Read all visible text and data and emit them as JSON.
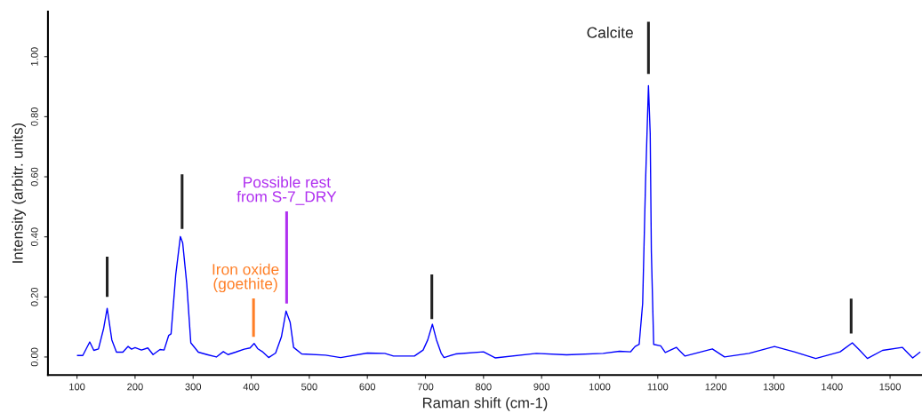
{
  "chart_data": {
    "type": "line",
    "xlabel": "Raman shift (cm-1)",
    "ylabel": "Intensity (arbitr. units)",
    "xlim": [
      50,
      1555
    ],
    "ylim": [
      -0.06,
      1.15
    ],
    "xticks": [
      100,
      200,
      300,
      400,
      500,
      600,
      700,
      800,
      900,
      1000,
      1100,
      1200,
      1300,
      1400,
      1500
    ],
    "yticks": [
      {
        "value": 0,
        "label": "0.00"
      },
      {
        "value": 0.2,
        "label": "0.20"
      },
      {
        "value": 0.4,
        "label": "0.40"
      },
      {
        "value": 0.6,
        "label": "0.60"
      },
      {
        "value": 0.8,
        "label": "0.80"
      },
      {
        "value": 1.0,
        "label": "1.00"
      }
    ],
    "grid": false,
    "marker": "none",
    "line_style": "solid",
    "series": [
      {
        "color": "#0000ff",
        "x": [
          100,
          110,
          122,
          129,
          137,
          146,
          152,
          160,
          168,
          179,
          188,
          194,
          200,
          211,
          222,
          231,
          243,
          250,
          258,
          262,
          270,
          278,
          282,
          289,
          296,
          309,
          324,
          340,
          352,
          360,
          373,
          388,
          398,
          405,
          411,
          419,
          430,
          442,
          452,
          460,
          467,
          473,
          487,
          528,
          554,
          600,
          630,
          645,
          681,
          696,
          704,
          712,
          719,
          727,
          732,
          752,
          800,
          820,
          891,
          943,
          1006,
          1034,
          1053,
          1061,
          1068,
          1074,
          1079,
          1084,
          1087,
          1089,
          1093,
          1105,
          1113,
          1132,
          1147,
          1194,
          1215,
          1257,
          1301,
          1335,
          1372,
          1414,
          1435,
          1448,
          1461,
          1487,
          1521,
          1539,
          1552
        ],
        "values": [
          0.005,
          0.005,
          0.05,
          0.022,
          0.027,
          0.096,
          0.162,
          0.057,
          0.016,
          0.016,
          0.035,
          0.026,
          0.031,
          0.023,
          0.03,
          0.008,
          0.025,
          0.023,
          0.072,
          0.077,
          0.273,
          0.401,
          0.38,
          0.244,
          0.047,
          0.016,
          0.008,
          0.0,
          0.018,
          0.008,
          0.016,
          0.026,
          0.03,
          0.045,
          0.028,
          0.018,
          -0.002,
          0.013,
          0.067,
          0.153,
          0.116,
          0.032,
          0.01,
          0.006,
          -0.002,
          0.013,
          0.012,
          0.003,
          0.003,
          0.023,
          0.057,
          0.109,
          0.057,
          0.013,
          -0.002,
          0.01,
          0.017,
          -0.003,
          0.012,
          0.007,
          0.012,
          0.019,
          0.017,
          0.035,
          0.042,
          0.178,
          0.583,
          0.903,
          0.744,
          0.35,
          0.042,
          0.037,
          0.015,
          0.032,
          0.003,
          0.027,
          0.0,
          0.012,
          0.035,
          0.017,
          -0.005,
          0.017,
          0.047,
          0.022,
          -0.005,
          0.022,
          0.032,
          -0.003,
          0.017
        ]
      },
      {
        "color": "#222222",
        "x": [
          152,
          152
        ],
        "values": [
          0.2,
          0.334
        ]
      },
      {
        "color": "#222222",
        "x": [
          281,
          281
        ],
        "values": [
          0.426,
          0.608
        ]
      },
      {
        "color": "#ff7f27",
        "x": [
          404,
          404
        ],
        "values": [
          0.067,
          0.195
        ]
      },
      {
        "color": "#b030f0",
        "x": [
          461,
          461
        ],
        "values": [
          0.178,
          0.485
        ]
      },
      {
        "color": "#222222",
        "x": [
          711,
          711
        ],
        "values": [
          0.126,
          0.275
        ]
      },
      {
        "color": "#222222",
        "x": [
          1084,
          1084
        ],
        "values": [
          0.942,
          1.116
        ]
      },
      {
        "color": "#222222",
        "x": [
          1433,
          1433
        ],
        "values": [
          0.078,
          0.194
        ]
      }
    ],
    "annotations": [
      {
        "text": "Iron oxide\n(goethite)",
        "x": 404,
        "y": 0.195
      },
      {
        "text": "Possible rest\nfrom S-7_DRY",
        "x": 461,
        "y": 0.485
      },
      {
        "text": "Calcite",
        "x": 1084,
        "y": 1.116
      }
    ]
  }
}
